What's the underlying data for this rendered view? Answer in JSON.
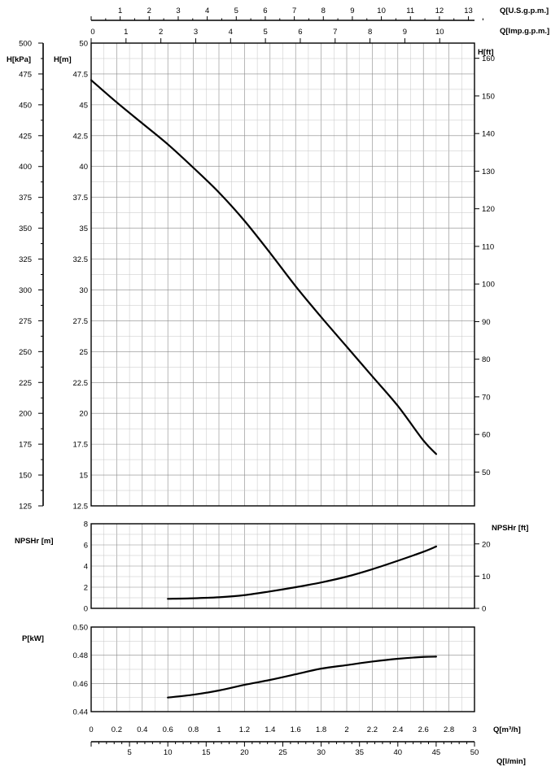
{
  "labels": {
    "q_usgpm": "Q[U.S.g.p.m.]",
    "q_impgpm": "Q[Imp.g.p.m.]",
    "h_kpa": "H[kPa]",
    "h_m": "H[m]",
    "h_ft": "H[ft]",
    "npshr_m": "NPSHr [m]",
    "npshr_ft": "NPSHr [ft]",
    "p_kw": "P[kW]",
    "q_m3h": "Q[m³/h]",
    "q_lmin": "Q[l/min]"
  },
  "ticks": {
    "q_usgpm": [
      "1",
      "2",
      "3",
      "4",
      "5",
      "6",
      "7",
      "8",
      "9",
      "10",
      "11",
      "12",
      "13"
    ],
    "q_impgpm": [
      "0",
      "1",
      "2",
      "3",
      "4",
      "5",
      "6",
      "7",
      "8",
      "9",
      "10"
    ],
    "q_m3h": [
      "0",
      "0.2",
      "0.4",
      "0.6",
      "0.8",
      "1",
      "1.2",
      "1.4",
      "1.6",
      "1.8",
      "2",
      "2.2",
      "2.4",
      "2.6",
      "2.8",
      "3"
    ],
    "q_lmin": [
      "5",
      "10",
      "15",
      "20",
      "25",
      "30",
      "35",
      "40",
      "45",
      "50"
    ],
    "h_m": [
      "12.5",
      "15",
      "17.5",
      "20",
      "22.5",
      "25",
      "27.5",
      "30",
      "32.5",
      "35",
      "37.5",
      "40",
      "42.5",
      "45",
      "47.5",
      "50"
    ],
    "h_kpa": [
      "125",
      "150",
      "175",
      "200",
      "225",
      "250",
      "275",
      "300",
      "325",
      "350",
      "375",
      "400",
      "425",
      "450",
      "475",
      "500"
    ],
    "h_ft": [
      "50",
      "60",
      "70",
      "80",
      "90",
      "100",
      "110",
      "120",
      "130",
      "140",
      "150",
      "160"
    ],
    "npshr_m": [
      "0",
      "2",
      "4",
      "6",
      "8"
    ],
    "npshr_ft": [
      "0",
      "10",
      "20"
    ],
    "p_kw": [
      "0.44",
      "0.46",
      "0.48",
      "0.50"
    ]
  },
  "chart_data": [
    {
      "type": "line",
      "x_units": "m³/h",
      "y_units": "m",
      "xlim": [
        0,
        3
      ],
      "ylim": [
        12.5,
        50
      ],
      "grid": true,
      "x": [
        0,
        0.2,
        0.4,
        0.6,
        0.8,
        1.0,
        1.2,
        1.4,
        1.6,
        1.8,
        2.0,
        2.2,
        2.4,
        2.6,
        2.7
      ],
      "values": [
        47.0,
        45.2,
        43.5,
        41.8,
        39.9,
        37.9,
        35.6,
        33.0,
        30.3,
        27.8,
        25.4,
        23.0,
        20.6,
        17.8,
        16.7
      ]
    },
    {
      "type": "line",
      "x_units": "m³/h",
      "y_units": "m",
      "xlim": [
        0,
        3
      ],
      "ylim": [
        0,
        8
      ],
      "grid": true,
      "x": [
        0.6,
        0.8,
        1.0,
        1.2,
        1.4,
        1.6,
        1.8,
        2.0,
        2.2,
        2.4,
        2.6,
        2.7
      ],
      "values": [
        0.9,
        0.95,
        1.05,
        1.25,
        1.6,
        2.0,
        2.45,
        3.0,
        3.7,
        4.5,
        5.35,
        5.85
      ]
    },
    {
      "type": "line",
      "x_units": "m³/h",
      "y_units": "kW",
      "xlim": [
        0,
        3
      ],
      "ylim": [
        0.44,
        0.5
      ],
      "grid": true,
      "x": [
        0.6,
        0.8,
        1.0,
        1.2,
        1.4,
        1.6,
        1.8,
        2.0,
        2.2,
        2.4,
        2.6,
        2.7
      ],
      "values": [
        0.45,
        0.452,
        0.455,
        0.459,
        0.4625,
        0.4665,
        0.4705,
        0.473,
        0.4755,
        0.4775,
        0.4788,
        0.479
      ]
    }
  ]
}
